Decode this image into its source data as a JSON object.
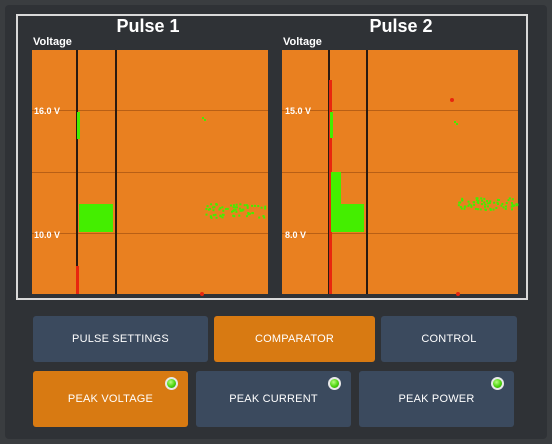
{
  "pulse1": {
    "title": "Pulse 1",
    "ylabel": "Voltage",
    "ticks": [
      {
        "label": "16.0 V"
      },
      {
        "label": "10.0 V"
      }
    ]
  },
  "pulse2": {
    "title": "Pulse 2",
    "ylabel": "Voltage",
    "ticks": [
      {
        "label": "15.0 V"
      },
      {
        "label": "8.0 V"
      }
    ]
  },
  "tabs": [
    {
      "label": "PULSE SETTINGS",
      "active": false
    },
    {
      "label": "COMPARATOR",
      "active": true
    },
    {
      "label": "CONTROL",
      "active": false
    }
  ],
  "modes": [
    {
      "label": "PEAK VOLTAGE",
      "active": true,
      "led": "green"
    },
    {
      "label": "PEAK CURRENT",
      "active": false,
      "led": "green"
    },
    {
      "label": "PEAK POWER",
      "active": false,
      "led": "green"
    }
  ],
  "colors": {
    "plot_bg": "#e98020",
    "trace": "#44ee00",
    "marker": "#e8260e",
    "active_button": "#d87a12",
    "button": "#3b4a5e"
  }
}
